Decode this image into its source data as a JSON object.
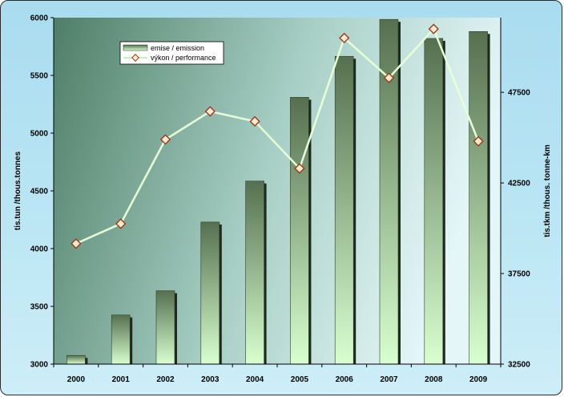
{
  "chart_data": {
    "type": "bar",
    "categories": [
      "2000",
      "2001",
      "2002",
      "2003",
      "2004",
      "2005",
      "2006",
      "2007",
      "2008",
      "2009"
    ],
    "series": [
      {
        "name": "emise / emission",
        "type": "bar",
        "axis": "left",
        "values": [
          3075,
          3425,
          3635,
          4230,
          4585,
          5310,
          5665,
          5985,
          5820,
          5880
        ]
      },
      {
        "name": "výkon / performance",
        "type": "line",
        "axis": "right",
        "values": [
          39150,
          40250,
          44900,
          46450,
          45900,
          43300,
          50500,
          48300,
          51000,
          44800
        ]
      }
    ],
    "ylabel": "tis.tun /thous.tonnes",
    "y2label": "tis.tkm /thous. tonne-km",
    "ylim": [
      3000,
      6000
    ],
    "y2lim": [
      32500,
      51625
    ],
    "yticks": [
      "3000",
      "3500",
      "4000",
      "4500",
      "5000",
      "5500",
      "6000"
    ],
    "y2ticks": [
      "32500",
      "37500",
      "42500",
      "47500"
    ],
    "legend_position": "top-left",
    "grid": false,
    "colors": {
      "bar_top": "#55704f",
      "bar_bottom": "#d8ffd0",
      "bar_shadow": "#1f2a1f",
      "line": "#e6ffd6",
      "marker_fill": "#ffe9cf",
      "marker_edge": "#9a3a1e",
      "plot_left": "#4f7e67",
      "plot_right": "#dff3f4"
    }
  }
}
